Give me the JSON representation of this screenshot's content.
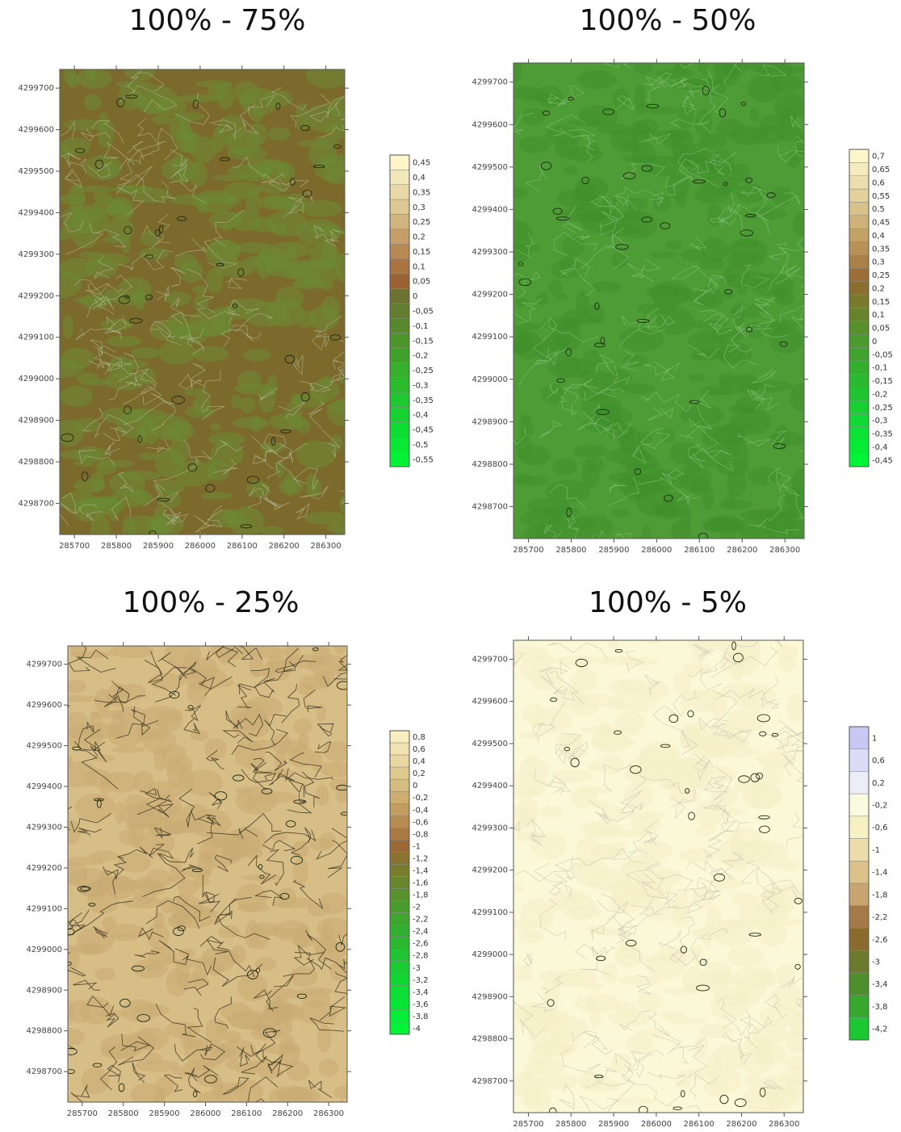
{
  "figure": {
    "chart_data": [
      {
        "type": "heatmap",
        "title": "100% - 75%",
        "x_ticks": [
          285700,
          285800,
          285900,
          286000,
          286100,
          286200,
          286300
        ],
        "y_ticks": [
          4299700,
          4299600,
          4299500,
          4299400,
          4299300,
          4299200,
          4299100,
          4299000,
          4298900,
          4298800,
          4298700
        ],
        "xlim": [
          285665,
          286345
        ],
        "ylim": [
          4298625,
          4299745
        ],
        "grid": false,
        "legend_position": "right",
        "colorbar": {
          "labels": [
            "0,45",
            "0,4",
            "0,35",
            "0,3",
            "0,25",
            "0,2",
            "0,15",
            "0,1",
            "0,05",
            "0",
            "-0,05",
            "-0,1",
            "-0,15",
            "-0,2",
            "-0,25",
            "-0,3",
            "-0,35",
            "-0,4",
            "-0,45",
            "-0,5",
            "-0,55"
          ],
          "colors": [
            "#fbf5c8",
            "#f2e7b8",
            "#e8d8a6",
            "#ddc894",
            "#d1b57e",
            "#c69f68",
            "#b98954",
            "#ab7440",
            "#9a6230",
            "#6e7230",
            "#627e2e",
            "#57892c",
            "#4c952b",
            "#41a22b",
            "#36af2d",
            "#2bbc2e",
            "#20c830",
            "#17d331",
            "#0fdd33",
            "#08e834",
            "#03f236"
          ]
        },
        "dominant_colors": [
          "#7c6a2c",
          "#6b8a34"
        ]
      },
      {
        "type": "heatmap",
        "title": "100% - 50%",
        "x_ticks": [
          285700,
          285800,
          285900,
          286000,
          286100,
          286200,
          286300
        ],
        "y_ticks": [
          4299700,
          4299600,
          4299500,
          4299400,
          4299300,
          4299200,
          4299100,
          4299000,
          4298900,
          4298800,
          4298700
        ],
        "xlim": [
          285665,
          286345
        ],
        "ylim": [
          4298625,
          4299745
        ],
        "grid": false,
        "legend_position": "right",
        "colorbar": {
          "labels": [
            "0,7",
            "0,65",
            "0,6",
            "0,55",
            "0,5",
            "0,45",
            "0,4",
            "0,35",
            "0,3",
            "0,25",
            "0,2",
            "0,15",
            "0,1",
            "0,05",
            "0",
            "-0,05",
            "-0,1",
            "-0,15",
            "-0,2",
            "-0,25",
            "-0,3",
            "-0,35",
            "-0,4",
            "-0,45"
          ],
          "colors": [
            "#fbf6cc",
            "#f4ecbe",
            "#ecdfae",
            "#e3d19c",
            "#d9c28a",
            "#cfb278",
            "#c4a266",
            "#b89156",
            "#ab7f46",
            "#9d6d38",
            "#8b6e2e",
            "#79792c",
            "#68832b",
            "#58902b",
            "#4a9a2c",
            "#3ea42d",
            "#33af2e",
            "#29ba2f",
            "#20c431",
            "#18cf32",
            "#11d933",
            "#0ae334",
            "#05ec35",
            "#02f436"
          ]
        },
        "dominant_colors": [
          "#4e9c35",
          "#3f8f2c"
        ]
      },
      {
        "type": "heatmap",
        "title": "100% - 25%",
        "x_ticks": [
          285700,
          285800,
          285900,
          286000,
          286100,
          286200,
          286300
        ],
        "y_ticks": [
          4299700,
          4299600,
          4299500,
          4299400,
          4299300,
          4299200,
          4299100,
          4299000,
          4298900,
          4298800,
          4298700
        ],
        "xlim": [
          285665,
          286345
        ],
        "ylim": [
          4298625,
          4299745
        ],
        "grid": false,
        "legend_position": "right",
        "colorbar": {
          "labels": [
            "0,8",
            "0,6",
            "0,4",
            "0,2",
            "0",
            "-0,2",
            "-0,4",
            "-0,6",
            "-0,8",
            "-1",
            "-1,2",
            "-1,4",
            "-1,6",
            "-1,8",
            "-2",
            "-2,2",
            "-2,4",
            "-2,6",
            "-2,8",
            "-3",
            "-3,2",
            "-3,4",
            "-3,6",
            "-3,8",
            "-4"
          ],
          "colors": [
            "#f8efc0",
            "#f0e3b0",
            "#e8d7a0",
            "#dfca8e",
            "#d6bc7e",
            "#cdae6e",
            "#c29d5e",
            "#b78c50",
            "#ab7a42",
            "#9b6a34",
            "#8a7330",
            "#787d2e",
            "#67872d",
            "#58912d",
            "#4a9b2d",
            "#3ea52e",
            "#33af2f",
            "#29b930",
            "#20c331",
            "#18cc32",
            "#11d533",
            "#0bde34",
            "#06e635",
            "#03ee36",
            "#01f536"
          ]
        },
        "dominant_colors": [
          "#d7bd86",
          "#c9ac72"
        ]
      },
      {
        "type": "heatmap",
        "title": "100% - 5%",
        "x_ticks": [
          285700,
          285800,
          285900,
          286000,
          286100,
          286200,
          286300
        ],
        "y_ticks": [
          4299700,
          4299600,
          4299500,
          4299400,
          4299300,
          4299200,
          4299100,
          4299000,
          4298900,
          4298800,
          4298700
        ],
        "xlim": [
          285665,
          286345
        ],
        "ylim": [
          4298625,
          4299745
        ],
        "grid": false,
        "legend_position": "right",
        "colorbar": {
          "labels": [
            "1",
            "0,6",
            "0,2",
            "-0,2",
            "-0,6",
            "-1",
            "-1,4",
            "-1,8",
            "-2,2",
            "-2,6",
            "-3",
            "-3,4",
            "-3,8",
            "-4,2"
          ],
          "colors": [
            "#c7c8f4",
            "#dcdcf6",
            "#ededf8",
            "#fafae0",
            "#f6f0c2",
            "#ecdcaa",
            "#dcc28a",
            "#c8a570",
            "#a57a48",
            "#8b6a2e",
            "#6b7a2c",
            "#4f8e2c",
            "#36a82e",
            "#1cc832"
          ]
        },
        "dominant_colors": [
          "#fbf8d8",
          "#f5efc6"
        ]
      }
    ]
  }
}
